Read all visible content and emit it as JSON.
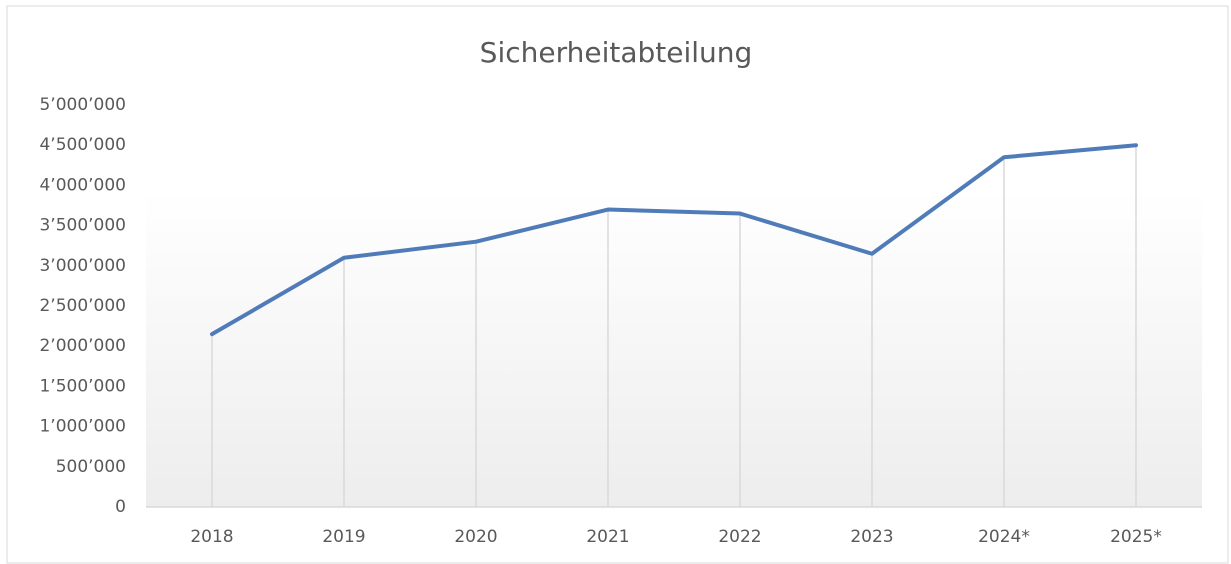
{
  "chart_data": {
    "type": "line",
    "title": "Sicherheitabteilung",
    "categories": [
      "2018",
      "2019",
      "2020",
      "2021",
      "2022",
      "2023",
      "2024*",
      "2025*"
    ],
    "series": [
      {
        "color": "#4f7cb8",
        "values": [
          2150000,
          3100000,
          3300000,
          3700000,
          3650000,
          3150000,
          4350000,
          4500000
        ]
      }
    ],
    "ylim": [
      0,
      5000000
    ],
    "yticks": [
      0,
      {
        "value": 500000,
        "label": "500’000"
      },
      {
        "value": 1000000,
        "label": "1’000’000"
      },
      {
        "value": 1500000,
        "label": "1’500’000"
      },
      {
        "value": 2000000,
        "label": "2’000’000"
      },
      {
        "value": 2500000,
        "label": "2’500’000"
      },
      {
        "value": 3000000,
        "label": "3’000’000"
      },
      {
        "value": 3500000,
        "label": "3’500’000"
      },
      {
        "value": 4000000,
        "label": "4’000’000"
      },
      {
        "value": 4500000,
        "label": "4’500’000"
      },
      {
        "value": 5000000,
        "label": "5’000’000"
      }
    ],
    "drop_lines": true
  }
}
